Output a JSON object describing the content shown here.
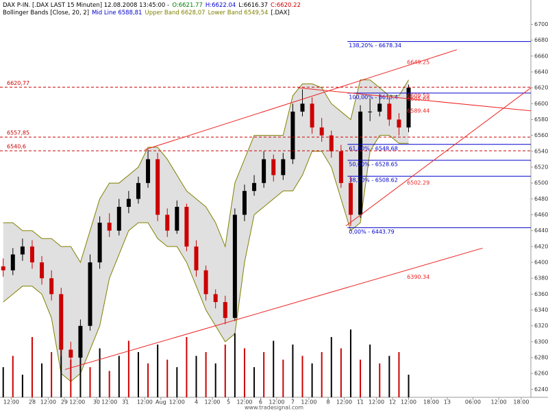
{
  "chart_data": {
    "type": "candlestick",
    "header": [
      [
        {
          "text": "DAX P-IN. [.DAX LAST 15 Minuten] 12.08.2008 13:45:00 -",
          "color": "#000000"
        },
        {
          "text": "O:6621.77",
          "color": "#008000"
        },
        {
          "text": "H:6622.04",
          "color": "#0000cc"
        },
        {
          "text": "L:6616.37",
          "color": "#000000"
        },
        {
          "text": "C:6620.22",
          "color": "#cc0000"
        }
      ],
      [
        {
          "text": "Bollinger Bands [Close, 20, 2]",
          "color": "#000000"
        },
        {
          "text": "Mid Line 6588,81",
          "color": "#0000cc"
        },
        {
          "text": "Upper Band 6628,07",
          "color": "#808000"
        },
        {
          "text": "Lower Band 6549,54",
          "color": "#808000"
        },
        {
          "text": "[.DAX]",
          "color": "#000000"
        }
      ]
    ],
    "footer": "www.tradesignal.com",
    "xlim": [
      0,
      165
    ],
    "ylim": [
      6230,
      6722
    ],
    "xticks": [
      {
        "value": 3.5,
        "label": "12:00"
      },
      {
        "value": 10,
        "label": "28"
      },
      {
        "value": 15,
        "label": "12:00"
      },
      {
        "value": 20,
        "label": "29"
      },
      {
        "value": 24,
        "label": "12:00"
      },
      {
        "value": 30,
        "label": "30"
      },
      {
        "value": 34,
        "label": "12:00"
      },
      {
        "value": 39,
        "label": "31"
      },
      {
        "value": 45,
        "label": "12:00"
      },
      {
        "value": 50,
        "label": "Aug"
      },
      {
        "value": 55,
        "label": "12:00"
      },
      {
        "value": 61,
        "label": "4"
      },
      {
        "value": 66,
        "label": "12:00"
      },
      {
        "value": 71,
        "label": "5"
      },
      {
        "value": 76,
        "label": "12:00"
      },
      {
        "value": 81,
        "label": "6"
      },
      {
        "value": 86,
        "label": "12:00"
      },
      {
        "value": 91,
        "label": "7"
      },
      {
        "value": 96,
        "label": "12:00"
      },
      {
        "value": 102,
        "label": "8"
      },
      {
        "value": 107,
        "label": "12:00"
      },
      {
        "value": 112,
        "label": "11"
      },
      {
        "value": 117,
        "label": "12:00"
      },
      {
        "value": 122,
        "label": "12"
      },
      {
        "value": 127,
        "label": "12:00"
      },
      {
        "value": 134,
        "label": "18:00"
      },
      {
        "value": 139,
        "label": "13"
      },
      {
        "value": 147,
        "label": "06:00"
      },
      {
        "value": 155,
        "label": "12:00"
      },
      {
        "value": 162,
        "label": "18:00"
      }
    ],
    "yticks": [
      6240,
      6260,
      6280,
      6300,
      6320,
      6340,
      6360,
      6380,
      6400,
      6420,
      6440,
      6460,
      6480,
      6500,
      6520,
      6540,
      6560,
      6580,
      6600,
      6620,
      6640,
      6660,
      6680,
      6700
    ],
    "up_color": "#000000",
    "down_color": "#cc0000",
    "candles": {
      "x": [
        1,
        4,
        7,
        10,
        13,
        16,
        19,
        22,
        25,
        28,
        31,
        34,
        37,
        40,
        43,
        46,
        49,
        52,
        55,
        58,
        61,
        64,
        67,
        70,
        73,
        76,
        79,
        82,
        85,
        88,
        91,
        94,
        97,
        100,
        103,
        106,
        109,
        112,
        115,
        118,
        121,
        124,
        127
      ],
      "open": [
        6395,
        6390,
        6410,
        6420,
        6400,
        6380,
        6360,
        6290,
        6280,
        6320,
        6400,
        6450,
        6440,
        6470,
        6480,
        6500,
        6530,
        6460,
        6440,
        6470,
        6420,
        6390,
        6360,
        6350,
        6330,
        6460,
        6490,
        6500,
        6530,
        6510,
        6530,
        6590,
        6600,
        6570,
        6560,
        6540,
        6500,
        6460,
        6590,
        6590,
        6600,
        6580,
        6570
      ],
      "high": [
        6405,
        6418,
        6430,
        6428,
        6408,
        6390,
        6368,
        6300,
        6328,
        6410,
        6458,
        6462,
        6480,
        6490,
        6508,
        6542,
        6538,
        6468,
        6478,
        6474,
        6428,
        6396,
        6366,
        6358,
        6468,
        6498,
        6510,
        6540,
        6536,
        6538,
        6600,
        6618,
        6608,
        6582,
        6566,
        6548,
        6508,
        6598,
        6606,
        6612,
        6608,
        6588,
        6624
      ],
      "low": [
        6382,
        6384,
        6402,
        6392,
        6372,
        6352,
        6282,
        6266,
        6274,
        6314,
        6392,
        6432,
        6434,
        6462,
        6474,
        6494,
        6452,
        6432,
        6436,
        6414,
        6382,
        6352,
        6342,
        6322,
        6326,
        6452,
        6484,
        6494,
        6502,
        6504,
        6524,
        6584,
        6562,
        6552,
        6532,
        6494,
        6446,
        6456,
        6578,
        6584,
        6572,
        6560,
        6564
      ],
      "close": [
        6390,
        6410,
        6420,
        6400,
        6380,
        6360,
        6290,
        6280,
        6320,
        6400,
        6450,
        6440,
        6470,
        6480,
        6500,
        6530,
        6460,
        6440,
        6470,
        6420,
        6390,
        6360,
        6350,
        6330,
        6460,
        6490,
        6500,
        6530,
        6510,
        6530,
        6590,
        6600,
        6570,
        6560,
        6540,
        6500,
        6460,
        6590,
        6590,
        6600,
        6580,
        6570,
        6620
      ]
    },
    "bollinger": {
      "color": "#808000",
      "fill": "#d8d8d8",
      "upper": [
        6450,
        6450,
        6440,
        6440,
        6430,
        6430,
        6420,
        6420,
        6400,
        6440,
        6480,
        6500,
        6500,
        6510,
        6520,
        6545,
        6545,
        6530,
        6510,
        6490,
        6480,
        6470,
        6450,
        6420,
        6500,
        6530,
        6560,
        6560,
        6560,
        6560,
        6610,
        6625,
        6625,
        6620,
        6600,
        6590,
        6580,
        6630,
        6630,
        6620,
        6610,
        6610,
        6630
      ],
      "lower": [
        6350,
        6360,
        6370,
        6370,
        6360,
        6330,
        6260,
        6250,
        6260,
        6290,
        6320,
        6380,
        6410,
        6440,
        6450,
        6450,
        6430,
        6420,
        6420,
        6400,
        6370,
        6340,
        6320,
        6300,
        6310,
        6400,
        6460,
        6470,
        6480,
        6490,
        6490,
        6510,
        6540,
        6540,
        6520,
        6480,
        6440,
        6450,
        6540,
        6560,
        6560,
        6550,
        6550
      ]
    },
    "volume": {
      "vlim": [
        0,
        100
      ],
      "values": [
        40,
        55,
        30,
        80,
        45,
        60,
        90,
        50,
        70,
        40,
        65,
        35,
        55,
        75,
        60,
        45,
        70,
        50,
        40,
        80,
        55,
        60,
        45,
        70,
        85,
        65,
        40,
        60,
        75,
        50,
        70,
        55,
        45,
        60,
        80,
        65,
        90,
        50,
        70,
        45,
        55,
        60,
        30
      ]
    },
    "levels": {
      "color": "#cc0000",
      "items": [
        {
          "value": 6620.77,
          "label": "6620,77"
        },
        {
          "value": 6557.85,
          "label": "6557,85"
        },
        {
          "value": 6540.6,
          "label": "6540,6"
        }
      ]
    },
    "fibonacci": {
      "color": "#0000cc",
      "start": 108,
      "items": [
        {
          "value": 6678.34,
          "label": "138,20% - 6678.34"
        },
        {
          "value": 6613.4,
          "label": "100,00% - 6613.4"
        },
        {
          "value": 6548.68,
          "label": "61,80% - 6548.68"
        },
        {
          "value": 6528.65,
          "label": "50,00% - 6528.65"
        },
        {
          "value": 6508.62,
          "label": "38,20% - 6508.62"
        },
        {
          "value": 6443.79,
          "label": "0,00% - 6443.79"
        }
      ]
    },
    "trendlines": {
      "color": "#ee2222",
      "items": [
        {
          "label": "6649.25",
          "points": [
            [
              45,
              6542
            ],
            [
              142,
              6668
            ]
          ]
        },
        {
          "label": "6589.44",
          "points": [
            [
              92.6,
              6620
            ],
            [
              165,
              6591
            ]
          ]
        },
        {
          "label": "6502.29",
          "points": [
            [
              107.5,
              6446
            ],
            [
              165,
              6620
            ]
          ]
        },
        {
          "label": "6390.34",
          "points": [
            [
              20.2,
              6265
            ],
            [
              150,
              6418
            ]
          ]
        }
      ]
    },
    "price_labels": [
      {
        "value": 6609.59,
        "label": "6609.59"
      },
      {
        "value": 6605.69,
        "label": "6605.69"
      }
    ]
  }
}
